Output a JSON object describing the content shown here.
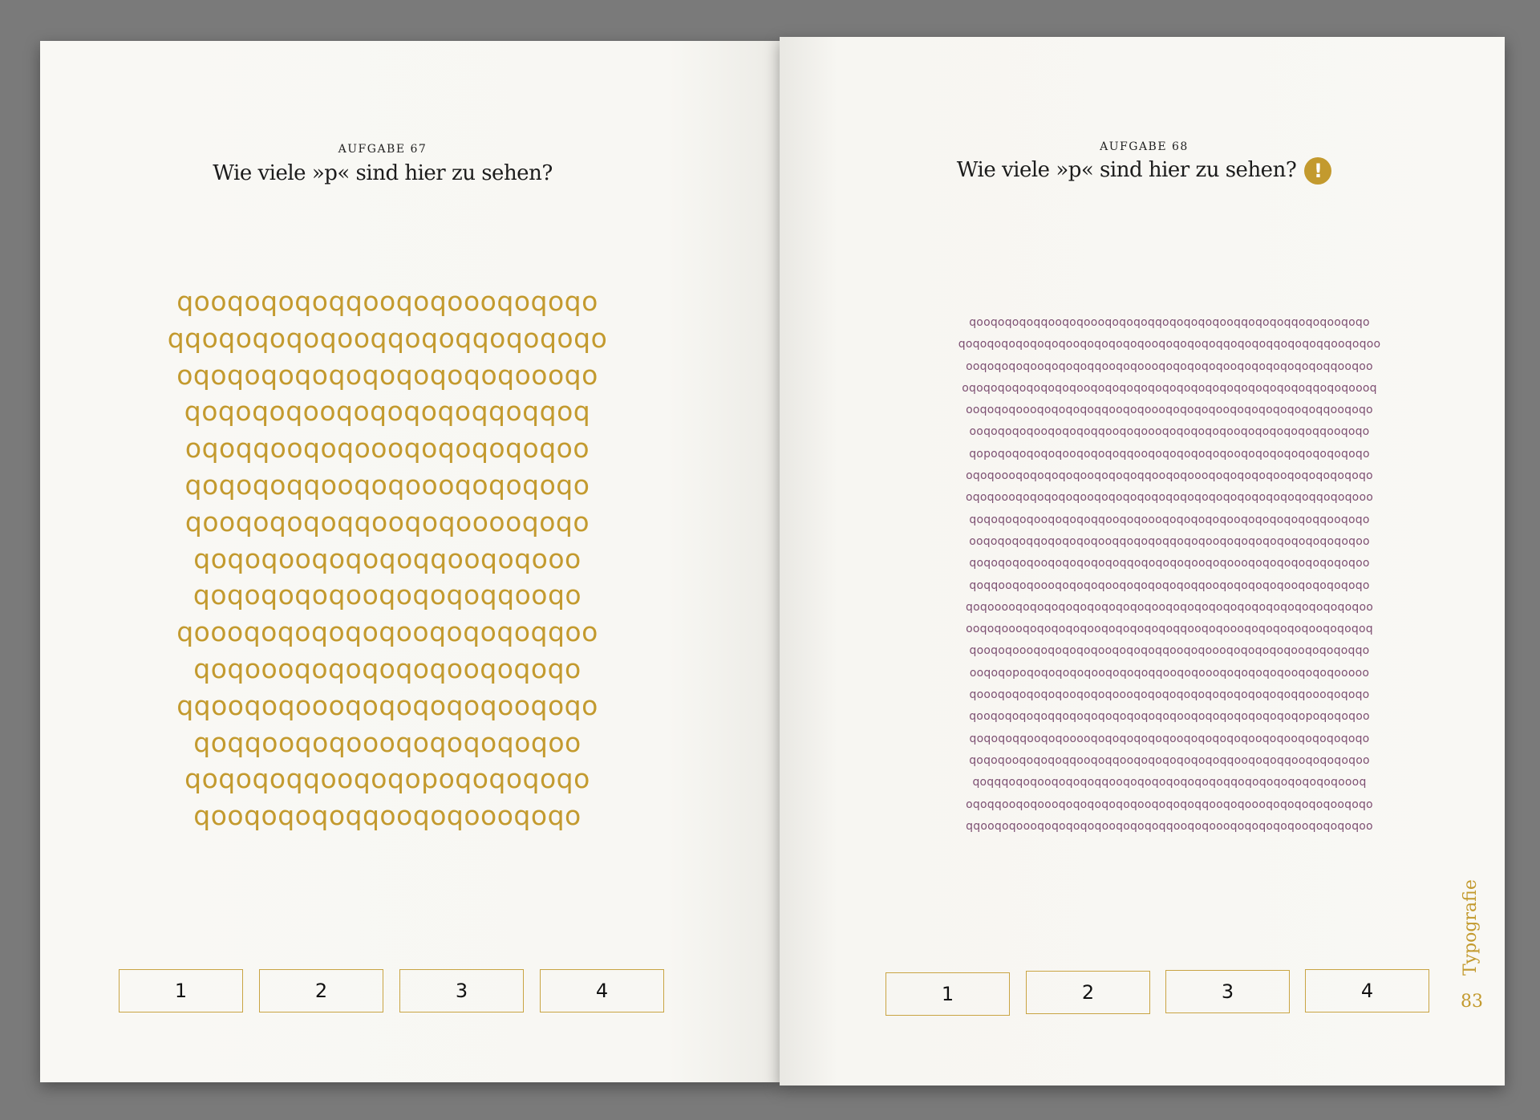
{
  "left": {
    "label": "AUFGABE 67",
    "title": "Wie viele »p« sind hier zu sehen?",
    "rows": [
      "qooqoqoqoqqooqoqoooqoqoqo",
      "qqoqoqoqoqooqqoqoqqoqoqoqo",
      "oqoqoqoqoqoqoqoqoqoqoooqo",
      "qoqoqoqooqoqoqoqoqqoqqoq",
      "oqoqqooqoqoooqoqoqoqoqoo",
      "qoqoqoqqooqoqoooqoqoqoqo",
      "qooqoqoqoqqooqoqooooqoqo",
      "qoqoqooqoqoqoqqooqoqooo",
      "qoqoqoqoqooqoqoqoqqooqo",
      "qoooqoqoqoqoqooqoqoqoqqoo",
      "qoqoooqoqoqoqoqooqoqoqo",
      "qqooqoqoooqoqoqoqoqooqoqo",
      "qoqqooqoqoooqoqoqoqoqoo",
      "qoqoqoqqooqoqopoqoqoqoqo",
      "qooqoqoqoqqooqoqoooqoqo"
    ],
    "answers": [
      "1",
      "2",
      "3",
      "4"
    ]
  },
  "right": {
    "label": "AUFGABE 68",
    "title": "Wie viele »p« sind hier zu sehen?",
    "badge": "!",
    "rows": [
      "qooqoqoqoqqooqoqoooqoqoqoqqoqoqoqoqooqqoqoqoqqoqoqooqoqo",
      "qoqoqoqoqoqoqoqooqoqoqoqoqooqoqoqoqoqqoqoqoqqoqoqoqqooqoqoo",
      "ooqoqoqoqooqoqoqoqqooqoqoooqoqoqoqoqooqoqoqoqoqoqoqqooqoo",
      "oqoqoqoqoqoqoqoqooqoqoqoqoqoqoqoqoqoqoqoqoqoqoqoqqoqoqoooq",
      "ooqoqoqoooqoqoqoqoqqooqoqoooqoqoqoqooqoqoqoqoqoqoqqooqoqo",
      "ooqoqoqoqooqoqoqoqqooqoqoooqoqoqoqoqooqoqoqoqoqoqqooqoqo",
      "qopoqoqoqoqoqooqoqoqoqqooqoqoqoqoqoqooqoqoqoqoqoqoqoqoqo",
      "oqoqoooqoqoqoqoqooqoqoqoqqooqoqoooqoqoqoqoqooqoqoqoqoqoqo",
      "oqoqoooqoqoqoqoqooqoqoqoqoqoqoqoqoqoqoqoqoqoqoqoqqoqoqooo",
      "qoqoqoqoqooqoqoqoqqooqoqoooqoqoqoqoqooqoqoqoqoqoqqooqoqo",
      "ooqoqoqoqqoqoqoqoqooqqoqoqoqqoqoqooqoqoqoqoqoqoqoqoqoqoo",
      "qoqoqoqoqooqoqoqoqoqoqqoqoqoqoqooqoqoooqoqoqoqoqoqoqoqoo",
      "qoqqooqoqoooqoqoqoqooqoqoqoqoqoqqooqoqoqoqoqooqoqoqoqoqo",
      "qoqooooqoqoqoqoqoqoqoqoqoqooqoqoqoqoqoqoqoqoqoqoqoqoqoqoo",
      "ooqoqoooqoqoqoqoqooqoqoqoqoqoqqooqoqoooqoqoqoqoqooqoqoqoq",
      "qooqoqoooqoqoqoqoqooqoqoqoqqooqoqoooqoqoqoqoqooqoqoqoqqo",
      "ooqoqopoqoqoqoqoqooqoqoqoqqooqoqoooqoqoqoqoqooqoqoqooooo",
      "qoooqoqoqoqoqooqoqoqoooqoqoqoqoqoqoqoqoqoqoqoqqoooqoqoqo",
      "qooqoqoqoqoqqoqoqoqoqoqoqoqoqooqoqoqoqoqoqoqoqopoqoqoqoo",
      "qoqoqoqqooqoqooooqoqoqoqoqoqooqoqoqoqoqooqoqooqoqoqoqoqo",
      "qoqoqooqoqoqoqqooqoqqooqoqoqoqoqoqoqqooqoqoqqooqoqoqoqoo",
      "qoqqqoqoqooqoqoqoqqooqoqoqoqoqoqoqoqqoqoqoqoqoqoqoqoooq",
      "oqoqqooqoqoooqoqoqoqoqoqooqoqoqoqqooqoqoooqoqoqoqoqooqoqo",
      "qqooqoqoooqoqoqoqoqooqoqoqoqqooqoqoooqoqoqoqoqooqoqoqoqoo"
    ],
    "answers": [
      "1",
      "2",
      "3",
      "4"
    ],
    "running_head": "Typografie",
    "page_number": "83"
  }
}
